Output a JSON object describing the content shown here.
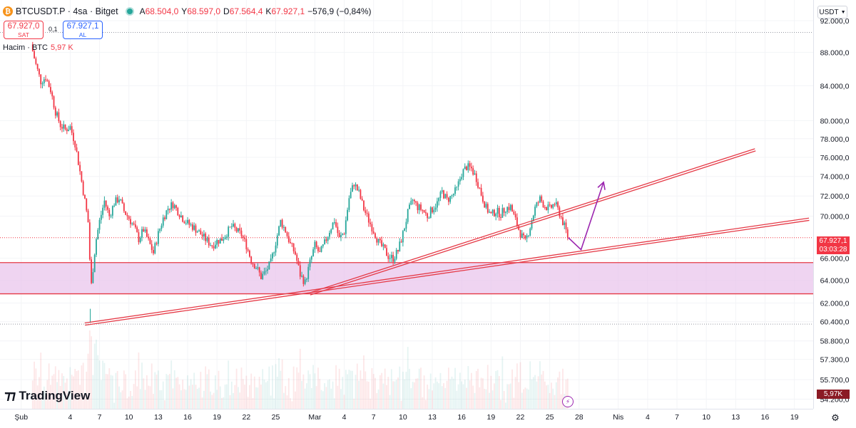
{
  "header": {
    "coin_icon": "bitcoin-icon",
    "title": "BTCUSDT.P · 4sa · Bitget",
    "market_status_color": "#26a69a",
    "ohlc": {
      "o_label": "A",
      "o_value": "68.504,0",
      "h_label": "Y",
      "h_value": "68.597,0",
      "l_label": "D",
      "l_value": "67.564,4",
      "c_label": "K",
      "c_value": "67.927,1",
      "change": "−576,9 (−0,84%)"
    }
  },
  "trade": {
    "sell_price": "67.927,0",
    "sell_label": "SAT",
    "spread": "0,1",
    "buy_price": "67.927,1",
    "buy_label": "AL"
  },
  "volume_legend": {
    "label": "Hacim · BTC",
    "value": "5,97 K"
  },
  "currency": {
    "label": "USDT",
    "icon": "chevron-down-icon"
  },
  "price_tags": {
    "current_price": "67.927,1",
    "countdown": "03:03:28",
    "volume": "5,97K"
  },
  "logo": {
    "text": "TradingView",
    "icon": "tradingview-logo-icon"
  },
  "icons": {
    "lightning": "lightning-icon",
    "settings": "gear-icon"
  },
  "colors": {
    "up": "#26a69a",
    "down": "#f23645",
    "trend": "#e53946",
    "zone_fill": "#e9c6ec",
    "projection": "#9c27b0"
  },
  "chart_data": {
    "type": "candlestick",
    "title": "BTCUSDT.P · 4sa · Bitget",
    "y_scale": "log",
    "ylim": [
      53800,
      94500
    ],
    "y_ticks": [
      92000,
      88000,
      84000,
      80000,
      78000,
      76000,
      74000,
      72000,
      70000,
      66000,
      64000,
      62000,
      60400,
      58800,
      57300,
      55700,
      54200
    ],
    "y_tick_labels": [
      "92.000,0",
      "88.000,0",
      "84.000,0",
      "80.000,0",
      "78.000,0",
      "76.000,0",
      "74.000,0",
      "72.000,0",
      "70.000,0",
      "66.000,0",
      "64.000,0",
      "62.000,0",
      "60.400,0",
      "58.800,0",
      "57.300,0",
      "55.700,0",
      "54.200,0"
    ],
    "x_ticks": [
      {
        "day": -1,
        "label": "Şub"
      },
      {
        "day": 4,
        "label": "4"
      },
      {
        "day": 7,
        "label": "7"
      },
      {
        "day": 10,
        "label": "10"
      },
      {
        "day": 13,
        "label": "13"
      },
      {
        "day": 16,
        "label": "16"
      },
      {
        "day": 19,
        "label": "19"
      },
      {
        "day": 22,
        "label": "22"
      },
      {
        "day": 25,
        "label": "25"
      },
      {
        "day": 29,
        "label": "Mar"
      },
      {
        "day": 32,
        "label": "4"
      },
      {
        "day": 35,
        "label": "7"
      },
      {
        "day": 38,
        "label": "10"
      },
      {
        "day": 41,
        "label": "13"
      },
      {
        "day": 44,
        "label": "16"
      },
      {
        "day": 47,
        "label": "19"
      },
      {
        "day": 50,
        "label": "22"
      },
      {
        "day": 53,
        "label": "25"
      },
      {
        "day": 56,
        "label": "28"
      },
      {
        "day": 60,
        "label": "Nis"
      },
      {
        "day": 63,
        "label": "4"
      },
      {
        "day": 66,
        "label": "7"
      },
      {
        "day": 69,
        "label": "10"
      },
      {
        "day": 72,
        "label": "13"
      },
      {
        "day": 75,
        "label": "16"
      },
      {
        "day": 78,
        "label": "19"
      }
    ],
    "path_points": [
      [
        0,
        89000
      ],
      [
        0.5,
        86500
      ],
      [
        1,
        84500
      ],
      [
        1.5,
        85000
      ],
      [
        2,
        83500
      ],
      [
        2.5,
        81000
      ],
      [
        3,
        79500
      ],
      [
        3.5,
        79000
      ],
      [
        4,
        79300
      ],
      [
        4.5,
        77500
      ],
      [
        5,
        74500
      ],
      [
        5.5,
        71500
      ],
      [
        5.9,
        69000
      ],
      [
        6.1,
        63000
      ],
      [
        6.6,
        67500
      ],
      [
        7,
        69500
      ],
      [
        7.5,
        71500
      ],
      [
        8,
        70000
      ],
      [
        8.5,
        71300
      ],
      [
        9,
        71800
      ],
      [
        9.5,
        70500
      ],
      [
        10,
        69800
      ],
      [
        10.5,
        69000
      ],
      [
        11,
        67800
      ],
      [
        11.5,
        68700
      ],
      [
        12,
        67600
      ],
      [
        12.5,
        66500
      ],
      [
        13,
        68300
      ],
      [
        13.5,
        69800
      ],
      [
        14,
        70800
      ],
      [
        14.5,
        71200
      ],
      [
        15,
        70500
      ],
      [
        15.5,
        69800
      ],
      [
        16,
        69300
      ],
      [
        16.5,
        69000
      ],
      [
        17,
        68600
      ],
      [
        17.5,
        68100
      ],
      [
        18,
        67600
      ],
      [
        18.5,
        67200
      ],
      [
        19,
        67600
      ],
      [
        19.5,
        67800
      ],
      [
        20,
        68400
      ],
      [
        20.5,
        69000
      ],
      [
        21,
        68600
      ],
      [
        21.5,
        68200
      ],
      [
        22,
        67200
      ],
      [
        22.5,
        65800
      ],
      [
        23,
        65200
      ],
      [
        23.5,
        64300
      ],
      [
        24,
        64800
      ],
      [
        24.5,
        65600
      ],
      [
        25,
        67500
      ],
      [
        25.5,
        69500
      ],
      [
        26,
        68600
      ],
      [
        26.5,
        67300
      ],
      [
        27,
        66400
      ],
      [
        27.5,
        64500
      ],
      [
        28,
        63800
      ],
      [
        28.5,
        65600
      ],
      [
        29,
        67200
      ],
      [
        29.5,
        66400
      ],
      [
        30,
        67400
      ],
      [
        30.5,
        68600
      ],
      [
        31,
        69600
      ],
      [
        31.5,
        67800
      ],
      [
        32,
        68500
      ],
      [
        32.5,
        71800
      ],
      [
        33,
        73300
      ],
      [
        33.5,
        72300
      ],
      [
        34,
        70700
      ],
      [
        34.5,
        69600
      ],
      [
        35,
        68600
      ],
      [
        35.5,
        67500
      ],
      [
        36,
        66900
      ],
      [
        36.5,
        66200
      ],
      [
        37,
        66000
      ],
      [
        37.5,
        66700
      ],
      [
        38,
        68300
      ],
      [
        38.5,
        70300
      ],
      [
        39,
        71600
      ],
      [
        39.5,
        70900
      ],
      [
        40,
        70600
      ],
      [
        40.5,
        70000
      ],
      [
        41,
        70700
      ],
      [
        41.5,
        71300
      ],
      [
        42,
        72400
      ],
      [
        42.5,
        71600
      ],
      [
        43,
        72000
      ],
      [
        43.5,
        72700
      ],
      [
        44,
        74300
      ],
      [
        44.5,
        75000
      ],
      [
        45,
        74800
      ],
      [
        45.5,
        73800
      ],
      [
        46,
        72200
      ],
      [
        46.5,
        70800
      ],
      [
        47,
        70100
      ],
      [
        47.5,
        70500
      ],
      [
        48,
        70200
      ],
      [
        48.5,
        70800
      ],
      [
        49,
        70900
      ],
      [
        49.5,
        69600
      ],
      [
        50,
        68300
      ],
      [
        50.5,
        67500
      ],
      [
        51,
        69000
      ],
      [
        51.5,
        70800
      ],
      [
        52,
        71700
      ],
      [
        52.5,
        71000
      ],
      [
        53,
        70700
      ],
      [
        53.5,
        71300
      ],
      [
        54,
        70300
      ],
      [
        54.5,
        69000
      ],
      [
        54.9,
        67927
      ]
    ],
    "projection": [
      [
        54.9,
        67927
      ],
      [
        56.2,
        66800
      ],
      [
        58.5,
        73400
      ]
    ],
    "trendlines": [
      {
        "x1": 5.5,
        "y1": 60200,
        "x2": 79.5,
        "y2": 69700
      },
      {
        "x1": 28.5,
        "y1": 62800,
        "x2": 74,
        "y2": 76800
      }
    ],
    "zone": {
      "top": 65600,
      "bottom": 62800
    },
    "horizontal_refs": [
      90500,
      67927.1,
      60200
    ],
    "last_price": 67927.1,
    "volume_ylim": [
      0,
      10
    ],
    "volume_unit": "K BTC"
  }
}
